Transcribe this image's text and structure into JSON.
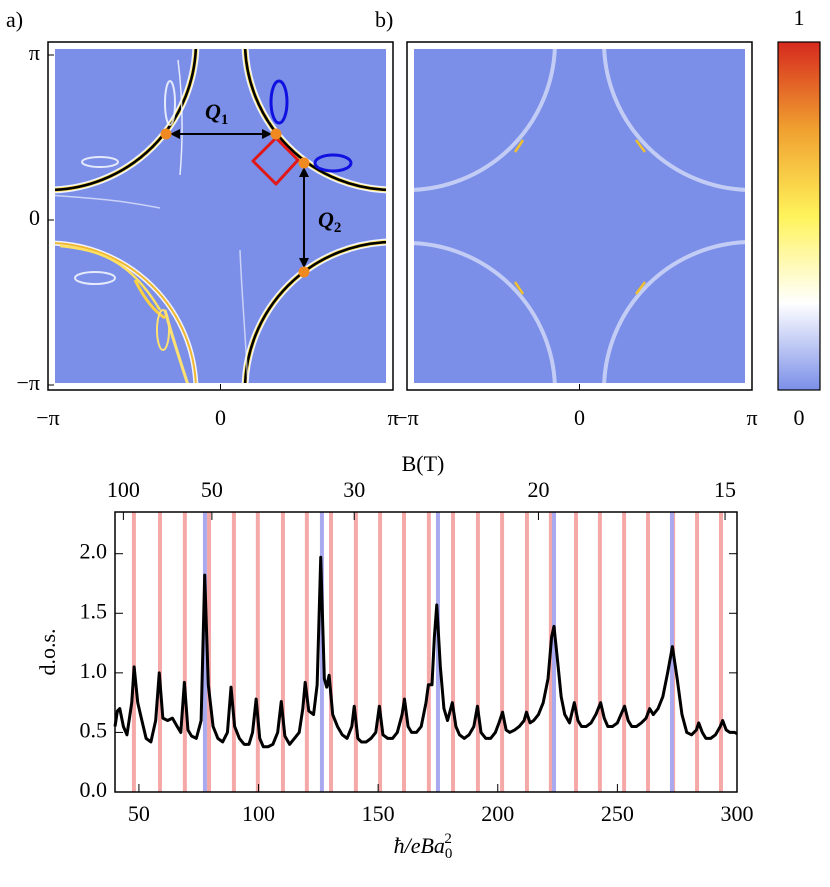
{
  "chart_data": [
    {
      "type": "heatmap",
      "title": "a)",
      "xlim": [
        -3.14159,
        3.14159
      ],
      "ylim": [
        -3.14159,
        3.14159
      ],
      "xticks": [
        {
          "value": -3.14159,
          "label": "−π"
        },
        0,
        {
          "value": 3.14159,
          "label": "π"
        }
      ],
      "yticks": [
        {
          "value": -3.14159,
          "label": "−π"
        },
        0,
        {
          "value": 3.14159,
          "label": "π"
        }
      ],
      "color": "#7b8fe8",
      "annotations": [
        {
          "text": "Q",
          "subscript": "1"
        },
        {
          "text": "Q",
          "subscript": "2"
        }
      ]
    },
    {
      "type": "heatmap",
      "title": "b)",
      "xlim": [
        -3.14159,
        3.14159
      ],
      "ylim": [
        -3.14159,
        3.14159
      ],
      "xticks": [
        {
          "value": -3.14159,
          "label": "−π"
        },
        0,
        {
          "value": 3.14159,
          "label": "π"
        }
      ],
      "color": "#7b8fe8",
      "colorbar": {
        "lim": [
          0,
          1
        ],
        "ticks": [
          0,
          1
        ],
        "colors": [
          "#7b8fe8",
          "#ffffff",
          "#fff35a",
          "#f0a030",
          "#d62a1e"
        ]
      }
    },
    {
      "type": "line",
      "xlabel": {
        "text": "ħ/eBa",
        "subscript": "0",
        "superscript": "2"
      },
      "ylabel": "d.o.s.",
      "x2label": "B(T)",
      "xlim": [
        40,
        300
      ],
      "ylim": [
        0,
        2.35
      ],
      "xticks": [
        50,
        100,
        150,
        200,
        250,
        300
      ],
      "yticks": [
        {
          "value": 0,
          "label": "0.0"
        },
        {
          "value": 0.5,
          "label": "0.5"
        },
        {
          "value": 1,
          "label": "1.0"
        },
        {
          "value": 1.5,
          "label": "1.5"
        },
        {
          "value": 2,
          "label": "2.0"
        }
      ],
      "x2ticks": [
        {
          "value": 43.5,
          "label": "100"
        },
        {
          "value": 80.5,
          "label": "50"
        },
        {
          "value": 140,
          "label": "30"
        },
        {
          "value": 217,
          "label": "20"
        },
        {
          "value": 295,
          "label": "15"
        }
      ],
      "reference_lines": [
        {
          "color": "#f5a8a8",
          "x": [
            47.9,
            58.8,
            69.2,
            79.3,
            89.7,
            99.7,
            110.2,
            120.2,
            130.3,
            140.7,
            150.8,
            160.8,
            171.2,
            181.3,
            191.7,
            201.8,
            212.2,
            222.2,
            232.7,
            242.7,
            252.8,
            262.8,
            273.3,
            283.3,
            293.3
          ]
        },
        {
          "color": "#a9a9f0",
          "x": [
            77.6,
            126.5,
            175,
            223.5,
            272.8
          ]
        }
      ],
      "color": "#000000",
      "x": [
        40,
        41,
        42,
        43.5,
        45,
        47,
        48,
        49.5,
        51,
        53,
        55,
        57,
        58.5,
        60,
        62,
        64,
        66,
        67.5,
        69,
        70.5,
        72,
        74,
        76,
        77.5,
        79,
        81,
        83,
        85,
        87,
        88.5,
        90,
        92,
        94,
        96,
        97.5,
        99,
        100.5,
        102,
        104,
        106,
        108,
        109.5,
        111,
        113,
        115,
        117,
        118.5,
        119.5,
        121,
        123,
        124.5,
        126,
        127.5,
        128.5,
        129.5,
        131,
        133,
        135,
        137,
        139,
        140,
        141.5,
        143,
        145,
        147,
        149,
        150.5,
        152,
        154,
        156,
        158,
        160,
        161,
        162.5,
        164,
        166,
        168,
        170,
        171,
        172.5,
        173.5,
        174.5,
        176,
        177.5,
        179,
        181,
        182.5,
        184,
        186,
        188,
        190,
        191.5,
        193,
        195,
        197,
        199,
        200.5,
        202,
        203.5,
        205,
        207,
        209,
        211,
        212,
        213.5,
        215,
        217,
        219,
        221,
        222.5,
        223.5,
        225,
        226.5,
        228,
        230,
        232,
        233.5,
        235,
        237,
        239,
        241,
        243,
        244.5,
        246,
        248,
        250,
        253,
        254.5,
        256,
        258,
        260,
        262,
        263.5,
        265,
        267,
        269,
        271,
        273,
        275,
        277,
        279,
        281,
        283,
        284,
        285.5,
        287,
        289,
        291,
        293,
        294,
        295.5,
        297,
        299,
        300
      ],
      "values": [
        0.55,
        0.68,
        0.7,
        0.55,
        0.48,
        0.75,
        1.05,
        0.75,
        0.62,
        0.45,
        0.42,
        0.6,
        1.0,
        0.62,
        0.6,
        0.62,
        0.55,
        0.5,
        0.92,
        0.52,
        0.47,
        0.45,
        0.6,
        1.82,
        0.9,
        0.55,
        0.45,
        0.42,
        0.5,
        0.88,
        0.55,
        0.45,
        0.4,
        0.4,
        0.5,
        0.78,
        0.45,
        0.38,
        0.38,
        0.4,
        0.5,
        0.76,
        0.47,
        0.4,
        0.45,
        0.5,
        0.7,
        0.92,
        0.68,
        0.65,
        0.9,
        1.97,
        0.95,
        0.88,
        0.98,
        0.65,
        0.55,
        0.48,
        0.45,
        0.55,
        0.72,
        0.45,
        0.42,
        0.42,
        0.45,
        0.5,
        0.72,
        0.48,
        0.45,
        0.45,
        0.5,
        0.65,
        0.78,
        0.55,
        0.5,
        0.5,
        0.55,
        0.75,
        0.9,
        0.9,
        1.3,
        1.57,
        1.05,
        0.7,
        0.6,
        0.75,
        0.55,
        0.48,
        0.45,
        0.48,
        0.55,
        0.72,
        0.5,
        0.45,
        0.45,
        0.5,
        0.58,
        0.67,
        0.52,
        0.5,
        0.52,
        0.55,
        0.6,
        0.67,
        0.58,
        0.6,
        0.65,
        0.75,
        0.95,
        1.3,
        1.39,
        1.1,
        0.8,
        0.65,
        0.58,
        0.75,
        0.6,
        0.55,
        0.55,
        0.58,
        0.65,
        0.75,
        0.62,
        0.55,
        0.55,
        0.58,
        0.72,
        0.6,
        0.55,
        0.55,
        0.58,
        0.62,
        0.7,
        0.65,
        0.7,
        0.8,
        1.0,
        1.22,
        0.95,
        0.65,
        0.5,
        0.48,
        0.52,
        0.58,
        0.5,
        0.45,
        0.45,
        0.48,
        0.55,
        0.6,
        0.52,
        0.5,
        0.5,
        0.49
      ]
    }
  ]
}
